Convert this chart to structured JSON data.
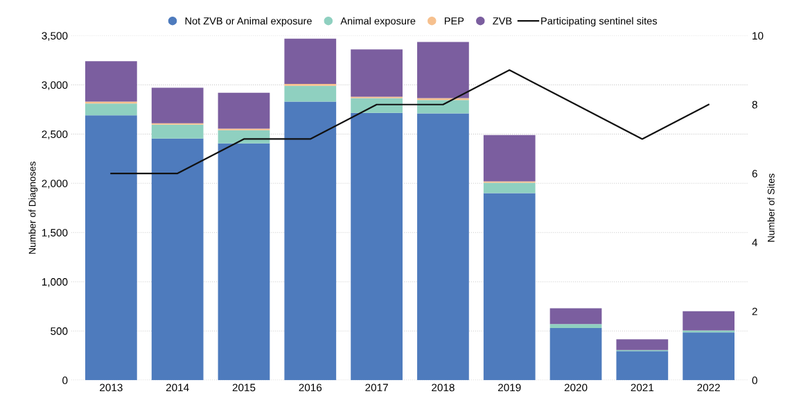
{
  "chart_data": {
    "type": "bar",
    "stacked": true,
    "categories": [
      "2013",
      "2014",
      "2015",
      "2016",
      "2017",
      "2018",
      "2019",
      "2020",
      "2021",
      "2022"
    ],
    "series": [
      {
        "name": "Not ZVB or Animal exposure",
        "color": "#4e7bbd",
        "values": [
          2690,
          2455,
          2405,
          2830,
          2715,
          2710,
          1900,
          530,
          295,
          485
        ]
      },
      {
        "name": "Animal exposure",
        "color": "#8fd0c0",
        "values": [
          120,
          140,
          135,
          160,
          150,
          135,
          105,
          40,
          10,
          20
        ]
      },
      {
        "name": "PEP",
        "color": "#f6c08e",
        "values": [
          20,
          15,
          15,
          20,
          15,
          20,
          15,
          null,
          null,
          null
        ]
      },
      {
        "name": "ZVB",
        "color": "#7b5e9f",
        "values": [
          410,
          360,
          365,
          460,
          480,
          570,
          470,
          160,
          110,
          195
        ]
      },
      {
        "name": "Participating sentinel sites",
        "type": "line",
        "axis": "y2",
        "color": "#111111",
        "values": [
          6,
          6,
          7,
          7,
          8,
          8,
          9,
          8,
          7,
          8
        ]
      }
    ],
    "ylabel": "Number of Diagnoses",
    "y2label": "Number of Sites",
    "ylim": [
      0,
      3500
    ],
    "yticks": [
      {
        "value": 0,
        "label": "0"
      },
      {
        "value": 500,
        "label": "500"
      },
      {
        "value": 1000,
        "label": "1,000"
      },
      {
        "value": 1500,
        "label": "1,500"
      },
      {
        "value": 2000,
        "label": "2,000"
      },
      {
        "value": 2500,
        "label": "2,500"
      },
      {
        "value": 3000,
        "label": "3,000"
      },
      {
        "value": 3500,
        "label": "3,500"
      }
    ],
    "y2lim": [
      0,
      10
    ],
    "y2ticks": [
      0,
      2,
      4,
      6,
      8,
      10
    ],
    "grid": "y",
    "legend": "top",
    "marker": "none",
    "line_style": "solid"
  }
}
